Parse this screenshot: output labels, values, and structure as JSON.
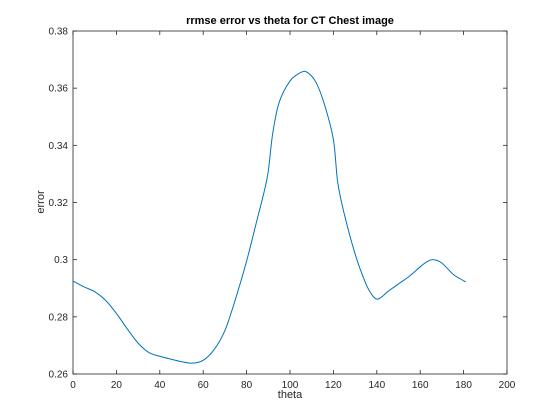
{
  "chart_data": {
    "type": "line",
    "title": "rrmse error vs theta for CT Chest image",
    "xlabel": "theta",
    "ylabel": "error",
    "xlim": [
      0,
      200
    ],
    "ylim": [
      0.26,
      0.38
    ],
    "x_ticks": [
      0,
      20,
      40,
      60,
      80,
      100,
      120,
      140,
      160,
      180,
      200
    ],
    "y_ticks": [
      0.26,
      0.28,
      0.3,
      0.32,
      0.34,
      0.36,
      0.38
    ],
    "x_tick_labels": [
      "0",
      "20",
      "40",
      "60",
      "80",
      "100",
      "120",
      "140",
      "160",
      "180",
      "200"
    ],
    "y_tick_labels": [
      "0.26",
      "0.28",
      "0.3",
      "0.32",
      "0.34",
      "0.36",
      "0.38"
    ],
    "grid": false,
    "series": [
      {
        "color": "#0072BD",
        "x": [
          0,
          5,
          10,
          15,
          20,
          25,
          30,
          35,
          40,
          45,
          50,
          55,
          60,
          65,
          70,
          75,
          80,
          85,
          88,
          90,
          92,
          95,
          100,
          105,
          108,
          112,
          116,
          120,
          122,
          125,
          130,
          135,
          138,
          140,
          142,
          145,
          150,
          155,
          160,
          163,
          166,
          170,
          175,
          178,
          181
        ],
        "y": [
          0.2925,
          0.2905,
          0.2888,
          0.2858,
          0.2812,
          0.2758,
          0.2708,
          0.2675,
          0.2662,
          0.2652,
          0.2643,
          0.2638,
          0.2648,
          0.2685,
          0.2752,
          0.2865,
          0.2995,
          0.3145,
          0.3235,
          0.331,
          0.344,
          0.355,
          0.3625,
          0.3655,
          0.3655,
          0.362,
          0.354,
          0.342,
          0.327,
          0.316,
          0.302,
          0.2915,
          0.2875,
          0.2862,
          0.2868,
          0.2888,
          0.2915,
          0.2942,
          0.2975,
          0.2992,
          0.3,
          0.2988,
          0.295,
          0.2935,
          0.2922
        ]
      }
    ]
  }
}
